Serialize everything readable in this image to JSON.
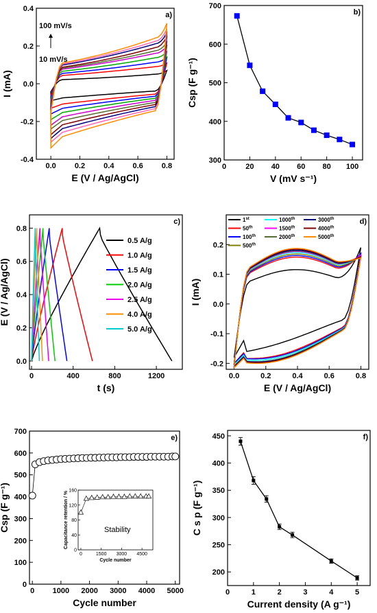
{
  "chart_data": [
    {
      "id": "a",
      "type": "line",
      "panel_label": "a)",
      "xlabel": "E (V / Ag/AgCl)",
      "ylabel": "I (mA)",
      "xlim": [
        -0.1,
        0.85
      ],
      "ylim": [
        -0.4,
        0.4
      ],
      "xticks": [
        "0.0",
        "0.2",
        "0.4",
        "0.6",
        "0.8"
      ],
      "yticks": [
        "-0.4",
        "-0.2",
        "0.0",
        "0.2",
        "0.4"
      ],
      "annotations": [
        "100 mV/s",
        "10 mV/s"
      ],
      "series": [
        {
          "scan_rate_mV_s": 10,
          "color": "#000000",
          "i_upper_at_0_4V": 0.04,
          "i_lower_at_0_4V": -0.07,
          "i_max": 0.07,
          "i_min": -0.09
        },
        {
          "scan_rate_mV_s": 20,
          "color": "#ff0000",
          "i_upper_at_0_4V": 0.08,
          "i_lower_at_0_4V": -0.1,
          "i_max": 0.11,
          "i_min": -0.13
        },
        {
          "scan_rate_mV_s": 30,
          "color": "#0000ff",
          "i_upper_at_0_4V": 0.1,
          "i_lower_at_0_4V": -0.12,
          "i_max": 0.14,
          "i_min": -0.16
        },
        {
          "scan_rate_mV_s": 40,
          "color": "#00aa00",
          "i_upper_at_0_4V": 0.12,
          "i_lower_at_0_4V": -0.14,
          "i_max": 0.17,
          "i_min": -0.19
        },
        {
          "scan_rate_mV_s": 50,
          "color": "#cc00cc",
          "i_upper_at_0_4V": 0.14,
          "i_lower_at_0_4V": -0.16,
          "i_max": 0.2,
          "i_min": -0.22
        },
        {
          "scan_rate_mV_s": 60,
          "color": "#556b2f",
          "i_upper_at_0_4V": 0.15,
          "i_lower_at_0_4V": -0.18,
          "i_max": 0.22,
          "i_min": -0.24
        },
        {
          "scan_rate_mV_s": 70,
          "color": "#800000",
          "i_upper_at_0_4V": 0.16,
          "i_lower_at_0_4V": -0.2,
          "i_max": 0.25,
          "i_min": -0.27
        },
        {
          "scan_rate_mV_s": 80,
          "color": "#000080",
          "i_upper_at_0_4V": 0.18,
          "i_lower_at_0_4V": -0.22,
          "i_max": 0.27,
          "i_min": -0.29
        },
        {
          "scan_rate_mV_s": 90,
          "color": "#ff69b4",
          "i_upper_at_0_4V": 0.19,
          "i_lower_at_0_4V": -0.24,
          "i_max": 0.29,
          "i_min": -0.31
        },
        {
          "scan_rate_mV_s": 100,
          "color": "#ff8c00",
          "i_upper_at_0_4V": 0.2,
          "i_lower_at_0_4V": -0.26,
          "i_max": 0.32,
          "i_min": -0.34
        }
      ]
    },
    {
      "id": "b",
      "type": "line",
      "panel_label": "b)",
      "xlabel": "V (mV s⁻¹)",
      "ylabel": "Csp (F g⁻¹)",
      "xlim": [
        0,
        108
      ],
      "ylim": [
        300,
        700
      ],
      "xticks": [
        "0",
        "20",
        "40",
        "60",
        "80",
        "100"
      ],
      "yticks": [
        "300",
        "400",
        "500",
        "600",
        "700"
      ],
      "color": "#0000ff",
      "x": [
        10,
        20,
        30,
        40,
        50,
        60,
        70,
        80,
        90,
        100
      ],
      "y": [
        673,
        545,
        478,
        444,
        409,
        397,
        377,
        364,
        353,
        340
      ]
    },
    {
      "id": "c",
      "type": "line",
      "panel_label": "c)",
      "xlabel": "t (s)",
      "ylabel": "E (V / Ag/AgCl)",
      "xlim": [
        -20,
        1450
      ],
      "ylim": [
        -0.05,
        0.88
      ],
      "xticks": [
        "0",
        "400",
        "800",
        "1200"
      ],
      "yticks": [
        "0.0",
        "0.2",
        "0.4",
        "0.6",
        "0.8"
      ],
      "series": [
        {
          "name": "0.5 A/g",
          "color": "#000000",
          "t_peak": 655,
          "t_end": 1350
        },
        {
          "name": "1.0 A/g",
          "color": "#ff0000",
          "t_peak": 295,
          "t_end": 585
        },
        {
          "name": "1.5 A/g",
          "color": "#0000ff",
          "t_peak": 170,
          "t_end": 340
        },
        {
          "name": "2.0 A/g",
          "color": "#00cc00",
          "t_peak": 110,
          "t_end": 225
        },
        {
          "name": "2.5 A/g",
          "color": "#ee00ee",
          "t_peak": 80,
          "t_end": 165
        },
        {
          "name": "4.0 A/g",
          "color": "#ff8c00",
          "t_peak": 50,
          "t_end": 105
        },
        {
          "name": "5.0 A/g",
          "color": "#00cccc",
          "t_peak": 35,
          "t_end": 75
        }
      ]
    },
    {
      "id": "d",
      "type": "line",
      "panel_label": "d)",
      "xlabel": "E (V / Ag/AgCl)",
      "ylabel": "I (mA)",
      "xlim": [
        -0.05,
        0.85
      ],
      "ylim": [
        -0.22,
        0.3
      ],
      "xticks": [
        "0.0",
        "0.2",
        "0.4",
        "0.6",
        "0.8"
      ],
      "yticks": [
        "-0.2",
        "-0.1",
        "0.0",
        "0.1",
        "0.2"
      ],
      "series": [
        {
          "name": "1",
          "sup": "st",
          "color": "#000000",
          "i_upper_at_0_4V": 0.11,
          "i_lower_at_0_4V": -0.11,
          "i_min": -0.18,
          "i_max": 0.19
        },
        {
          "name": "50",
          "sup": "th",
          "color": "#ff0000",
          "i_upper_at_0_4V": 0.15,
          "i_lower_at_0_4V": -0.16,
          "i_min": -0.2,
          "i_max": 0.17
        },
        {
          "name": "100",
          "sup": "th",
          "color": "#0000ff",
          "i_upper_at_0_4V": 0.155,
          "i_lower_at_0_4V": -0.165,
          "i_min": -0.2,
          "i_max": 0.17
        },
        {
          "name": "500",
          "sup": "th",
          "color": "#808000",
          "i_upper_at_0_4V": 0.16,
          "i_lower_at_0_4V": -0.17,
          "i_min": -0.205,
          "i_max": 0.165
        },
        {
          "name": "1000",
          "sup": "th",
          "color": "#00ffff",
          "i_upper_at_0_4V": 0.165,
          "i_lower_at_0_4V": -0.17,
          "i_min": -0.205,
          "i_max": 0.165
        },
        {
          "name": "1500",
          "sup": "th",
          "color": "#ff00ff",
          "i_upper_at_0_4V": 0.168,
          "i_lower_at_0_4V": -0.175,
          "i_min": -0.21,
          "i_max": 0.165
        },
        {
          "name": "2000",
          "sup": "th",
          "color": "#556b2f",
          "i_upper_at_0_4V": 0.17,
          "i_lower_at_0_4V": -0.175,
          "i_min": -0.21,
          "i_max": 0.16
        },
        {
          "name": "3000",
          "sup": "th",
          "color": "#000080",
          "i_upper_at_0_4V": 0.172,
          "i_lower_at_0_4V": -0.178,
          "i_min": -0.21,
          "i_max": 0.16
        },
        {
          "name": "4000",
          "sup": "th",
          "color": "#800000",
          "i_upper_at_0_4V": 0.175,
          "i_lower_at_0_4V": -0.18,
          "i_min": -0.212,
          "i_max": 0.16
        },
        {
          "name": "5000",
          "sup": "th",
          "color": "#ff8c00",
          "i_upper_at_0_4V": 0.178,
          "i_lower_at_0_4V": -0.182,
          "i_min": -0.215,
          "i_max": 0.155
        }
      ]
    },
    {
      "id": "e",
      "type": "scatter",
      "panel_label": "e)",
      "xlabel": "Cycle number",
      "ylabel": "Csp (F g⁻¹)",
      "xlim": [
        -100,
        5150
      ],
      "ylim": [
        0,
        700
      ],
      "xticks": [
        "0",
        "1000",
        "2000",
        "3000",
        "4000",
        "5000"
      ],
      "yticks": [
        "0",
        "100",
        "200",
        "300",
        "400",
        "500",
        "600",
        "700"
      ],
      "x": [
        1,
        100,
        250,
        400,
        550,
        700,
        850,
        1000,
        1150,
        1300,
        1450,
        1600,
        1750,
        1900,
        2050,
        2200,
        2350,
        2500,
        2650,
        2800,
        2950,
        3100,
        3250,
        3400,
        3550,
        3700,
        3850,
        4000,
        4150,
        4300,
        4450,
        4600,
        4750,
        4900,
        5000
      ],
      "y": [
        405,
        548,
        558,
        563,
        566,
        568,
        570,
        572,
        573,
        574,
        575,
        576,
        577,
        577,
        578,
        578,
        579,
        579,
        580,
        580,
        580,
        581,
        581,
        581,
        582,
        582,
        582,
        582,
        583,
        583,
        583,
        583,
        583,
        584,
        584
      ],
      "inset": {
        "type": "scatter",
        "label": "Stability",
        "xlabel": "Cycle number",
        "ylabel": "Capacitance retention / %",
        "xlim": [
          -200,
          5300
        ],
        "ylim": [
          0,
          160
        ],
        "xticks": [
          "0",
          "1500",
          "3000",
          "4500"
        ],
        "yticks": [
          "0",
          "40",
          "80",
          "120",
          "160"
        ],
        "x": [
          1,
          400,
          800,
          1200,
          1600,
          2000,
          2400,
          2800,
          3200,
          3600,
          4000,
          4400,
          4800,
          5000
        ],
        "y": [
          100,
          137,
          139,
          140,
          141,
          141,
          142,
          142,
          142,
          143,
          143,
          143,
          143,
          143
        ]
      }
    },
    {
      "id": "f",
      "type": "line",
      "panel_label": "f)",
      "xlabel": "Current density (A g⁻¹)",
      "ylabel": "C s p  (F g⁻¹)",
      "xlim": [
        0,
        5.5
      ],
      "ylim": [
        175,
        460
      ],
      "xticks": [
        "0",
        "1",
        "2",
        "3",
        "4",
        "5"
      ],
      "yticks": [
        "200",
        "250",
        "300",
        "350",
        "400",
        "450"
      ],
      "x": [
        0.5,
        1.0,
        1.5,
        2.0,
        2.5,
        4.0,
        5.0
      ],
      "y": [
        440,
        368,
        334,
        283,
        268,
        220,
        189
      ],
      "err": [
        7,
        7,
        6,
        5,
        5,
        4,
        4
      ]
    }
  ]
}
